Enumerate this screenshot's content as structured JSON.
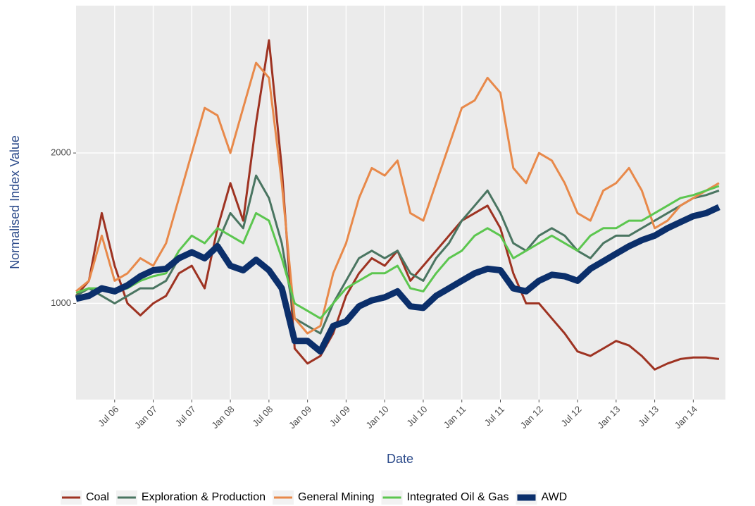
{
  "chart_data": {
    "type": "line",
    "x_label": "Date",
    "y_label": "Normalised Index Value",
    "x": [
      "2006-01",
      "2006-03",
      "2006-05",
      "2006-07",
      "2006-09",
      "2006-11",
      "2007-01",
      "2007-03",
      "2007-05",
      "2007-07",
      "2007-09",
      "2007-11",
      "2008-01",
      "2008-03",
      "2008-05",
      "2008-07",
      "2008-09",
      "2008-11",
      "2009-01",
      "2009-03",
      "2009-05",
      "2009-07",
      "2009-09",
      "2009-11",
      "2010-01",
      "2010-03",
      "2010-05",
      "2010-07",
      "2010-09",
      "2010-11",
      "2011-01",
      "2011-03",
      "2011-05",
      "2011-07",
      "2011-09",
      "2011-11",
      "2012-01",
      "2012-03",
      "2012-05",
      "2012-07",
      "2012-09",
      "2012-11",
      "2013-01",
      "2013-03",
      "2013-05",
      "2013-07",
      "2013-09",
      "2013-11",
      "2014-01",
      "2014-03",
      "2014-05"
    ],
    "series": [
      {
        "name": "Coal",
        "color": "#9e3322",
        "linewidth": 3,
        "values": [
          1050,
          1150,
          1600,
          1250,
          1000,
          920,
          1000,
          1050,
          1200,
          1250,
          1100,
          1500,
          1800,
          1550,
          2200,
          2750,
          1900,
          700,
          600,
          650,
          800,
          1050,
          1200,
          1300,
          1250,
          1350,
          1150,
          1250,
          1350,
          1450,
          1550,
          1600,
          1650,
          1500,
          1200,
          1000,
          1000,
          900,
          800,
          680,
          650,
          700,
          750,
          720,
          650,
          560,
          600,
          630,
          640,
          640,
          630
        ]
      },
      {
        "name": "Exploration & Production",
        "color": "#4a7561",
        "linewidth": 3,
        "values": [
          1050,
          1100,
          1050,
          1000,
          1050,
          1100,
          1100,
          1150,
          1300,
          1350,
          1300,
          1400,
          1600,
          1500,
          1850,
          1700,
          1400,
          900,
          850,
          800,
          1000,
          1150,
          1300,
          1350,
          1300,
          1350,
          1200,
          1150,
          1300,
          1400,
          1550,
          1650,
          1750,
          1600,
          1400,
          1350,
          1450,
          1500,
          1450,
          1350,
          1300,
          1400,
          1450,
          1450,
          1500,
          1550,
          1600,
          1650,
          1700,
          1720,
          1750
        ]
      },
      {
        "name": "General Mining",
        "color": "#e8894a",
        "linewidth": 3,
        "values": [
          1080,
          1150,
          1450,
          1150,
          1200,
          1300,
          1250,
          1400,
          1700,
          2000,
          2300,
          2250,
          2000,
          2300,
          2600,
          2500,
          1800,
          900,
          800,
          850,
          1200,
          1400,
          1700,
          1900,
          1850,
          1950,
          1600,
          1550,
          1800,
          2050,
          2300,
          2350,
          2500,
          2400,
          1900,
          1800,
          2000,
          1950,
          1800,
          1600,
          1550,
          1750,
          1800,
          1900,
          1750,
          1500,
          1550,
          1650,
          1700,
          1750,
          1800
        ]
      },
      {
        "name": "Integrated Oil & Gas",
        "color": "#5cc64f",
        "linewidth": 3,
        "values": [
          1070,
          1100,
          1100,
          1080,
          1100,
          1150,
          1180,
          1200,
          1350,
          1450,
          1400,
          1500,
          1450,
          1400,
          1600,
          1550,
          1300,
          1000,
          950,
          900,
          1000,
          1100,
          1150,
          1200,
          1200,
          1250,
          1100,
          1080,
          1200,
          1300,
          1350,
          1450,
          1500,
          1450,
          1300,
          1350,
          1400,
          1450,
          1400,
          1350,
          1450,
          1500,
          1500,
          1550,
          1550,
          1600,
          1650,
          1700,
          1720,
          1750,
          1780
        ]
      },
      {
        "name": "AWD",
        "color": "#0b2f6b",
        "linewidth": 9,
        "values": [
          1030,
          1050,
          1100,
          1080,
          1120,
          1180,
          1220,
          1230,
          1300,
          1340,
          1300,
          1380,
          1250,
          1220,
          1290,
          1220,
          1100,
          750,
          750,
          680,
          850,
          880,
          980,
          1020,
          1040,
          1080,
          980,
          970,
          1050,
          1100,
          1150,
          1200,
          1230,
          1220,
          1100,
          1080,
          1150,
          1190,
          1180,
          1150,
          1230,
          1280,
          1330,
          1380,
          1420,
          1450,
          1500,
          1540,
          1580,
          1600,
          1640
        ]
      }
    ],
    "xlim": [
      "2006-01",
      "2014-06"
    ],
    "xticks": [
      {
        "value": "2006-07",
        "label": "Jul 06"
      },
      {
        "value": "2007-01",
        "label": "Jan 07"
      },
      {
        "value": "2007-07",
        "label": "Jul 07"
      },
      {
        "value": "2008-01",
        "label": "Jan 08"
      },
      {
        "value": "2008-07",
        "label": "Jul 08"
      },
      {
        "value": "2009-01",
        "label": "Jan 09"
      },
      {
        "value": "2009-07",
        "label": "Jul 09"
      },
      {
        "value": "2010-01",
        "label": "Jan 10"
      },
      {
        "value": "2010-07",
        "label": "Jul 10"
      },
      {
        "value": "2011-01",
        "label": "Jan 11"
      },
      {
        "value": "2011-07",
        "label": "Jul 11"
      },
      {
        "value": "2012-01",
        "label": "Jan 12"
      },
      {
        "value": "2012-07",
        "label": "Jul 12"
      },
      {
        "value": "2013-01",
        "label": "Jan 13"
      },
      {
        "value": "2013-07",
        "label": "Jul 13"
      },
      {
        "value": "2014-01",
        "label": "Jan 14"
      }
    ],
    "ylim": [
      360,
      2980
    ],
    "yticks": [
      1000,
      2000
    ],
    "grid": true,
    "legend": "bottom"
  }
}
